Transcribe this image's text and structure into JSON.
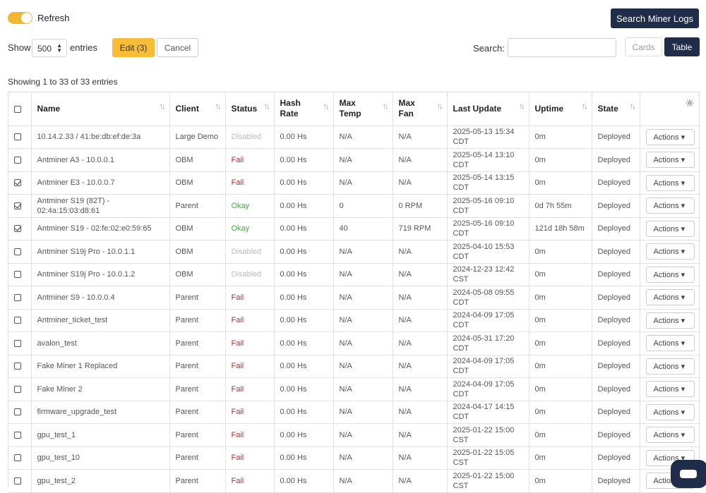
{
  "toolbar": {
    "refresh_label": "Refresh",
    "refresh_on": true,
    "search_logs_label": "Search Miner Logs",
    "show_label": "Show",
    "entries_value": "500",
    "entries_label": "entries",
    "edit_label": "Edit (3)",
    "cancel_label": "Cancel",
    "search_label": "Search:",
    "search_value": "",
    "cards_label": "Cards",
    "table_label": "Table"
  },
  "showing_text": "Showing 1 to 33 of 33 entries",
  "colors": {
    "accent": "#f7bd38",
    "navy": "#1f2d4a",
    "fail": "#b52b2b",
    "okay": "#4aa546",
    "disabled": "#bbbbbb"
  },
  "table": {
    "columns": [
      "Name",
      "Client",
      "Status",
      "Hash Rate",
      "Max Temp",
      "Max Fan",
      "Last Update",
      "Uptime",
      "State"
    ],
    "rows": [
      {
        "checked": false,
        "name": "10.14.2.33 / 41:be:db:ef:de:3a",
        "client": "Large Demo",
        "status": "Disabled",
        "status_kind": "disabled",
        "hash": "0.00 Hs",
        "temp": "N/A",
        "fan": "N/A",
        "update": "2025-05-13 15:34 CDT",
        "uptime": "0m",
        "state": "Deployed",
        "actions": "Actions"
      },
      {
        "checked": false,
        "name": "Antminer A3 - 10.0.0.1",
        "client": "OBM",
        "status": "Fail",
        "status_kind": "fail",
        "hash": "0.00 Hs",
        "temp": "N/A",
        "fan": "N/A",
        "update": "2025-05-14 13:10 CDT",
        "uptime": "0m",
        "state": "Deployed",
        "actions": "Actions"
      },
      {
        "checked": true,
        "name": "Antminer E3 - 10.0.0.7",
        "client": "OBM",
        "status": "Fail",
        "status_kind": "fail",
        "hash": "0.00 Hs",
        "temp": "N/A",
        "fan": "N/A",
        "update": "2025-05-14 13:15 CDT",
        "uptime": "0m",
        "state": "Deployed",
        "actions": "Actions"
      },
      {
        "checked": true,
        "name": "Antminer S19 (82T) - 02:4a:15:03:d8:61",
        "client": "Parent",
        "status": "Okay",
        "status_kind": "okay",
        "hash": "0.00 Hs",
        "temp": "0",
        "fan": "0 RPM",
        "update": "2025-05-16 09:10 CDT",
        "uptime": "0d 7h 55m",
        "state": "Deployed",
        "actions": "Actions"
      },
      {
        "checked": true,
        "name": "Antminer S19 - 02:fe:02:e0:59:65",
        "client": "OBM",
        "status": "Okay",
        "status_kind": "okay",
        "hash": "0.00 Hs",
        "temp": "40",
        "fan": "719 RPM",
        "update": "2025-05-16 09:10 CDT",
        "uptime": "121d 18h 58m",
        "state": "Deployed",
        "actions": "Actions"
      },
      {
        "checked": false,
        "name": "Antminer S19j Pro - 10.0.1.1",
        "client": "OBM",
        "status": "Disabled",
        "status_kind": "disabled",
        "hash": "0.00 Hs",
        "temp": "N/A",
        "fan": "N/A",
        "update": "2025-04-10 15:53 CDT",
        "uptime": "0m",
        "state": "Deployed",
        "actions": "Actions"
      },
      {
        "checked": false,
        "name": "Antminer S19j Pro - 10.0.1.2",
        "client": "OBM",
        "status": "Disabled",
        "status_kind": "disabled",
        "hash": "0.00 Hs",
        "temp": "N/A",
        "fan": "N/A",
        "update": "2024-12-23 12:42 CST",
        "uptime": "0m",
        "state": "Deployed",
        "actions": "Actions"
      },
      {
        "checked": false,
        "name": "Antminer S9 - 10.0.0.4",
        "client": "Parent",
        "status": "Fail",
        "status_kind": "fail",
        "hash": "0.00 Hs",
        "temp": "N/A",
        "fan": "N/A",
        "update": "2024-05-08 09:55 CDT",
        "uptime": "0m",
        "state": "Deployed",
        "actions": "Actions"
      },
      {
        "checked": false,
        "name": "Antminer_ticket_test",
        "client": "Parent",
        "status": "Fail",
        "status_kind": "fail",
        "hash": "0.00 Hs",
        "temp": "N/A",
        "fan": "N/A",
        "update": "2024-04-09 17:05 CDT",
        "uptime": "0m",
        "state": "Deployed",
        "actions": "Actions"
      },
      {
        "checked": false,
        "name": "avalon_test",
        "client": "Parent",
        "status": "Fail",
        "status_kind": "fail",
        "hash": "0.00 Hs",
        "temp": "N/A",
        "fan": "N/A",
        "update": "2024-05-31 17:20 CDT",
        "uptime": "0m",
        "state": "Deployed",
        "actions": "Actions"
      },
      {
        "checked": false,
        "name": "Fake Miner 1 Replaced",
        "client": "Parent",
        "status": "Fail",
        "status_kind": "fail",
        "hash": "0.00 Hs",
        "temp": "N/A",
        "fan": "N/A",
        "update": "2024-04-09 17:05 CDT",
        "uptime": "0m",
        "state": "Deployed",
        "actions": "Actions"
      },
      {
        "checked": false,
        "name": "Fake Miner 2",
        "client": "Parent",
        "status": "Fail",
        "status_kind": "fail",
        "hash": "0.00 Hs",
        "temp": "N/A",
        "fan": "N/A",
        "update": "2024-04-09 17:05 CDT",
        "uptime": "0m",
        "state": "Deployed",
        "actions": "Actions"
      },
      {
        "checked": false,
        "name": "firmware_upgrade_test",
        "client": "Parent",
        "status": "Fail",
        "status_kind": "fail",
        "hash": "0.00 Hs",
        "temp": "N/A",
        "fan": "N/A",
        "update": "2024-04-17 14:15 CDT",
        "uptime": "0m",
        "state": "Deployed",
        "actions": "Actions"
      },
      {
        "checked": false,
        "name": "gpu_test_1",
        "client": "Parent",
        "status": "Fail",
        "status_kind": "fail",
        "hash": "0.00 Hs",
        "temp": "N/A",
        "fan": "N/A",
        "update": "2025-01-22 15:00 CST",
        "uptime": "0m",
        "state": "Deployed",
        "actions": "Actions"
      },
      {
        "checked": false,
        "name": "gpu_test_10",
        "client": "Parent",
        "status": "Fail",
        "status_kind": "fail",
        "hash": "0.00 Hs",
        "temp": "N/A",
        "fan": "N/A",
        "update": "2025-01-22 15:05 CST",
        "uptime": "0m",
        "state": "Deployed",
        "actions": "Actions"
      },
      {
        "checked": false,
        "name": "gpu_test_2",
        "client": "Parent",
        "status": "Fail",
        "status_kind": "fail",
        "hash": "0.00 Hs",
        "temp": "N/A",
        "fan": "N/A",
        "update": "2025-01-22 15:00 CST",
        "uptime": "0m",
        "state": "Deployed",
        "actions": "Actions"
      }
    ]
  }
}
